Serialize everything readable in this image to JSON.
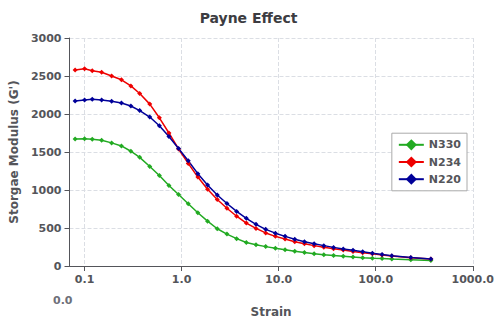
{
  "chart_data": {
    "type": "line",
    "title": "Payne Effect",
    "xlabel": "Strain",
    "ylabel": "Storgae Modulus (G')",
    "log": "x",
    "grid": true,
    "legend": "right",
    "xlim": [
      0.07,
      1000
    ],
    "ylim": [
      0,
      3000
    ],
    "xticks": [
      0.1,
      {
        "value": 1,
        "label": "1.0"
      },
      {
        "value": 10,
        "label": "10.0"
      },
      {
        "value": 100,
        "label": "100.0"
      },
      {
        "value": 1000,
        "label": "1000.0"
      }
    ],
    "yticks": [
      0,
      500,
      1000,
      1500,
      2000,
      2500,
      3000
    ],
    "annotations": [
      "0.0"
    ],
    "x": [
      0.08,
      0.1,
      0.12,
      0.15,
      0.19,
      0.24,
      0.3,
      0.37,
      0.47,
      0.59,
      0.74,
      0.93,
      1.17,
      1.47,
      1.85,
      2.33,
      2.93,
      3.69,
      4.64,
      5.84,
      7.35,
      9.25,
      11.64,
      14.65,
      18.43,
      23.2,
      29.2,
      36.8,
      46.3,
      58.3,
      73.4,
      92.4,
      116.3,
      146.4,
      230.0,
      370.0
    ],
    "series": [
      {
        "name": "N330",
        "color": "#22AA22",
        "marker": "diamond",
        "values": [
          1670,
          1675,
          1668,
          1655,
          1620,
          1580,
          1510,
          1430,
          1310,
          1190,
          1060,
          940,
          820,
          700,
          590,
          490,
          420,
          360,
          310,
          280,
          255,
          235,
          215,
          195,
          178,
          162,
          148,
          138,
          128,
          118,
          110,
          103,
          98,
          92,
          82,
          72
        ]
      },
      {
        "name": "N234",
        "color": "#EE0000",
        "marker": "diamond",
        "values": [
          2580,
          2595,
          2570,
          2550,
          2500,
          2450,
          2370,
          2270,
          2130,
          1950,
          1750,
          1540,
          1350,
          1170,
          1010,
          875,
          760,
          655,
          565,
          495,
          435,
          390,
          355,
          320,
          292,
          268,
          248,
          228,
          210,
          192,
          175,
          160,
          146,
          132,
          110,
          92
        ]
      },
      {
        "name": "N220",
        "color": "#000099",
        "marker": "diamond",
        "values": [
          2170,
          2185,
          2195,
          2185,
          2168,
          2145,
          2105,
          2045,
          1960,
          1845,
          1705,
          1545,
          1385,
          1215,
          1065,
          935,
          822,
          718,
          628,
          548,
          482,
          432,
          390,
          352,
          320,
          292,
          268,
          245,
          225,
          207,
          188,
          168,
          152,
          135,
          112,
          92
        ]
      }
    ]
  }
}
